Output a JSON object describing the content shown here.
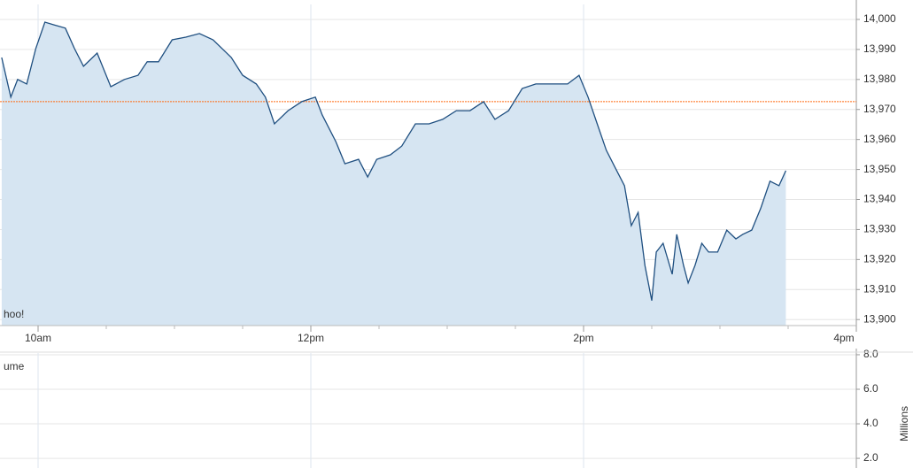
{
  "chart_data": [
    {
      "type": "area",
      "watermark": "hoo!",
      "x": [
        584,
        588,
        591,
        595,
        599,
        603,
        607,
        612,
        616,
        620,
        626,
        632,
        638,
        644,
        648,
        653,
        659,
        665,
        671,
        677,
        685,
        690,
        696,
        700,
        704,
        710,
        716,
        722,
        725,
        731,
        735,
        741,
        745,
        749,
        755,
        760,
        766,
        772,
        778,
        784,
        790,
        796,
        801,
        807,
        813,
        819,
        825,
        833,
        838,
        842,
        846,
        850,
        854,
        858,
        861,
        864,
        867,
        870,
        872,
        875,
        879,
        881,
        884,
        886,
        889,
        892,
        895,
        899,
        903,
        907,
        910,
        914,
        918,
        922,
        926,
        929
      ],
      "values": [
        13987.3,
        13974.1,
        13980,
        13978.5,
        13990.3,
        13999.1,
        13998.2,
        13997.1,
        13990.3,
        13984.4,
        13988.8,
        13977.6,
        13980,
        13981.4,
        13985.9,
        13985.9,
        13993.2,
        13994.1,
        13995.3,
        13993.2,
        13987.3,
        13981.4,
        13978.5,
        13974.1,
        13965.2,
        13969.6,
        13972.6,
        13974.1,
        13968.2,
        13959.3,
        13951.9,
        13953.4,
        13947.5,
        13953.4,
        13954.9,
        13957.8,
        13965.2,
        13965.2,
        13966.7,
        13969.6,
        13969.6,
        13972.6,
        13966.7,
        13969.6,
        13977,
        13978.5,
        13978.5,
        13978.5,
        13981.4,
        13974.1,
        13965.2,
        13956.4,
        13950.5,
        13944.6,
        13931.3,
        13935.7,
        13918,
        13906.3,
        13922.5,
        13925.4,
        13915.1,
        13928.4,
        13918,
        13912.2,
        13918,
        13925.4,
        13922.5,
        13922.5,
        13929.8,
        13926.9,
        13928.4,
        13929.8,
        13937.2,
        13946.1,
        13944.6,
        13949.6
      ],
      "color": "#1f4f80",
      "fill_color": "#d6e5f2",
      "reference_line": 13972.6,
      "reference_color": "#ff6a10",
      "xlim": [
        583.25,
        960
      ],
      "xticks": [
        {
          "value": 600,
          "label": "10am"
        },
        {
          "value": 720,
          "label": "12pm"
        },
        {
          "value": 840,
          "label": "2pm"
        },
        {
          "value": 960,
          "label": "4pm"
        }
      ],
      "xminorticks": [
        630,
        660,
        690,
        750,
        780,
        810,
        870,
        900,
        930
      ],
      "ylim": [
        13898,
        14005
      ],
      "yticks": [
        {
          "value": 13900,
          "label": "13,900"
        },
        {
          "value": 13910,
          "label": "13,910"
        },
        {
          "value": 13920,
          "label": "13,920"
        },
        {
          "value": 13930,
          "label": "13,930"
        },
        {
          "value": 13940,
          "label": "13,940"
        },
        {
          "value": 13950,
          "label": "13,950"
        },
        {
          "value": 13960,
          "label": "13,960"
        },
        {
          "value": 13970,
          "label": "13,970"
        },
        {
          "value": 13980,
          "label": "13,980"
        },
        {
          "value": 13990,
          "label": "13,990"
        },
        {
          "value": 14000,
          "label": "14,000"
        }
      ],
      "grid": true
    },
    {
      "type": "bar",
      "title": "ume",
      "y_label": "Millions",
      "ylim": [
        1.44,
        8.1
      ],
      "yticks": [
        {
          "value": 2,
          "label": "2.0"
        },
        {
          "value": 4,
          "label": "4.0"
        },
        {
          "value": 6,
          "label": "6.0"
        },
        {
          "value": 8,
          "label": "8.0"
        }
      ],
      "grid": true
    }
  ]
}
